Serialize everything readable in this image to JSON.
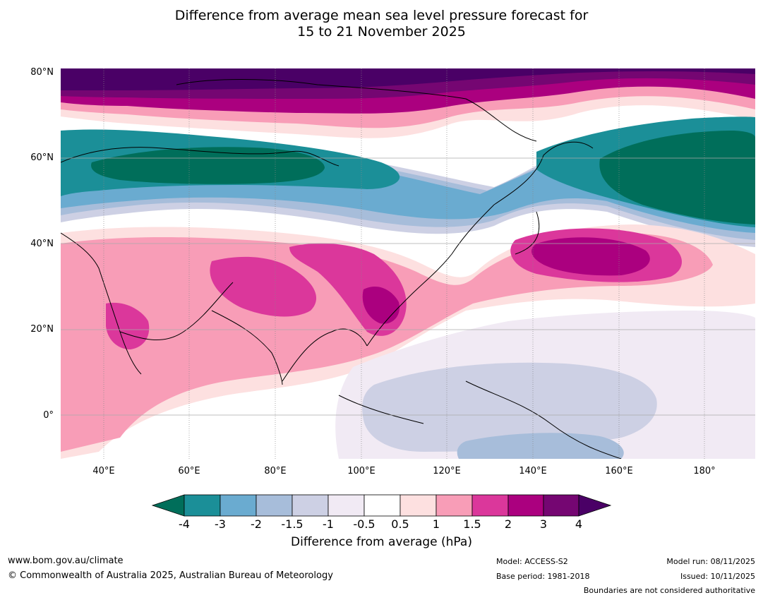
{
  "title": {
    "line1": "Difference from average mean sea level pressure forecast for",
    "line2": "15 to 21 November 2025"
  },
  "map": {
    "lat_labels": [
      "80°N",
      "60°N",
      "40°N",
      "20°N",
      "0°"
    ],
    "lon_labels": [
      "40°E",
      "60°E",
      "80°E",
      "100°E",
      "120°E",
      "140°E",
      "160°E",
      "180°"
    ],
    "lon_range": [
      30,
      190
    ],
    "lat_range": [
      -10,
      80
    ]
  },
  "colorbar": {
    "ticks": [
      "-4",
      "-3",
      "-2",
      "-1.5",
      "-1",
      "-0.5",
      "0.5",
      "1",
      "1.5",
      "2",
      "3",
      "4"
    ],
    "colors": [
      "#1b8f98",
      "#6aabd0",
      "#a7bdda",
      "#cdd0e4",
      "#f1eaf4",
      "#ffffff",
      "#fde0e0",
      "#f89db7",
      "#db379b",
      "#ab007f",
      "#750672"
    ],
    "under_color": "#006e5a",
    "over_color": "#4a0066",
    "label": "Difference from average (hPa)"
  },
  "footer": {
    "url": "www.bom.gov.au/climate",
    "copyright": "© Commonwealth of Australia 2025, Australian Bureau of Meteorology",
    "model": "Model: ACCESS-S2",
    "base_period": "Base period: 1981-2018",
    "model_run": "Model run: 08/11/2025",
    "issued": "Issued: 10/11/2025",
    "disclaimer": "Boundaries are not considered authoritative"
  }
}
